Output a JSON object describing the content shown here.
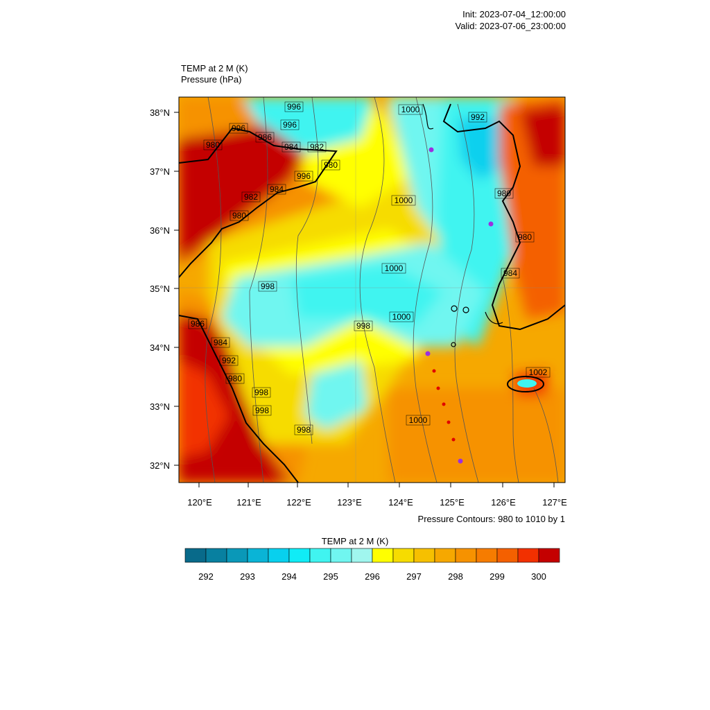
{
  "header": {
    "init": "Init: 2023-07-04_12:00:00",
    "valid": "Valid: 2023-07-06_23:00:00"
  },
  "plot_titles": {
    "field": "TEMP at 2 M   (K)",
    "contour_field": "Pressure   (hPa)"
  },
  "map": {
    "lon_labels": [
      "120°E",
      "121°E",
      "122°E",
      "123°E",
      "124°E",
      "125°E",
      "126°E",
      "127°E"
    ],
    "lat_labels": [
      "38°N",
      "37°N",
      "36°N",
      "35°N",
      "34°N",
      "33°N",
      "32°N"
    ],
    "contour_labels": [
      "996",
      "1000",
      "992",
      "996",
      "996",
      "986",
      "980",
      "982",
      "984",
      "980",
      "996",
      "984",
      "982",
      "1000",
      "980",
      "980",
      "1000",
      "998",
      "984",
      "1000",
      "998",
      "986",
      "984",
      "992",
      "980",
      "998",
      "998",
      "998",
      "1000",
      "1002",
      "980"
    ],
    "footnote": "Pressure Contours: 980 to 1010 by 1"
  },
  "colorbar": {
    "title": "TEMP at 2 M  (K)",
    "colors": [
      "#086a8a",
      "#0880a0",
      "#0a98b8",
      "#0ab4d6",
      "#08d0ee",
      "#10ecf6",
      "#40f4f0",
      "#70f6f0",
      "#a0f6ee",
      "#ffff00",
      "#f6dc00",
      "#f6c000",
      "#f6a800",
      "#f69200",
      "#f67c00",
      "#f46000",
      "#f23000",
      "#c40000"
    ],
    "tick_labels": [
      "292",
      "293",
      "294",
      "295",
      "296",
      "297",
      "298",
      "299",
      "300"
    ]
  }
}
